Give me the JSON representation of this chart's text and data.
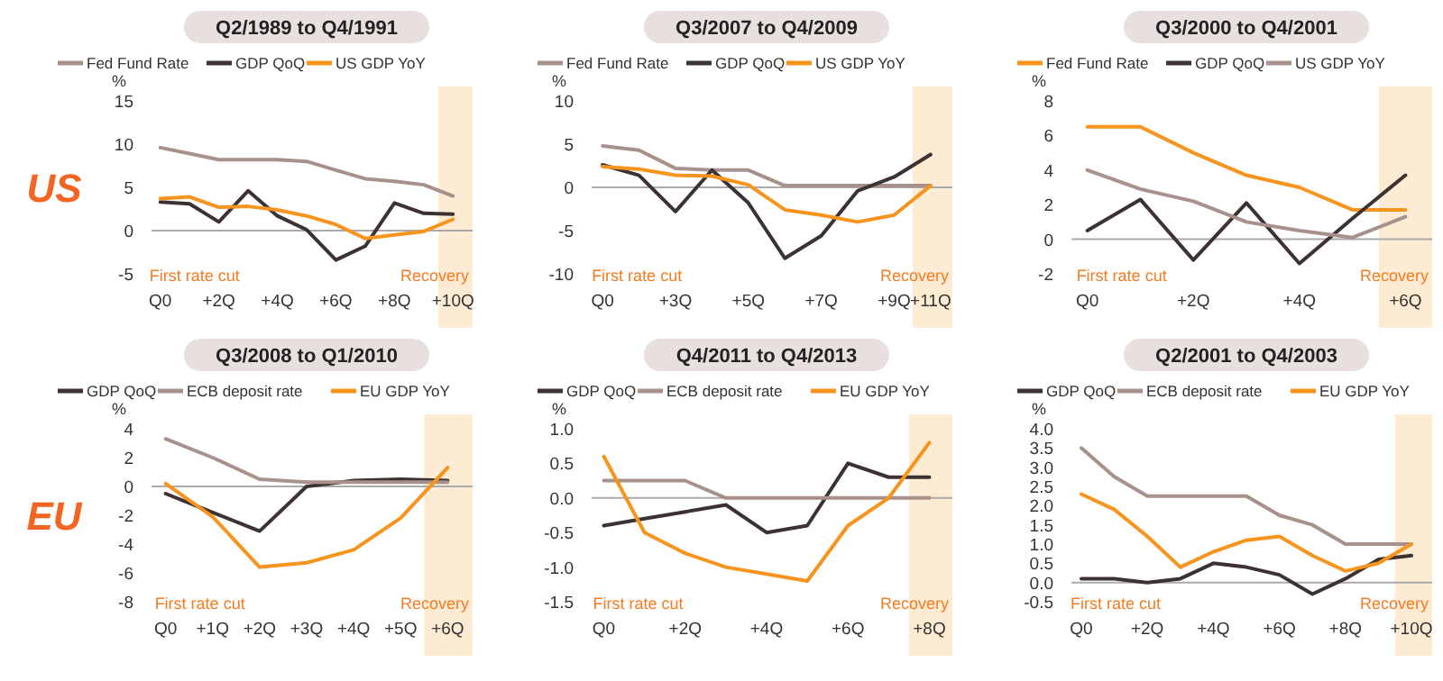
{
  "chart_data": [
    {
      "type": "line",
      "title": "Q2/1989 to Q4/1991",
      "ylabel": "%",
      "legend": "top",
      "categories": [
        "Q0",
        null,
        "+2Q",
        null,
        "+4Q",
        null,
        "+6Q",
        null,
        "+8Q",
        null,
        "+10Q"
      ],
      "ylim": [
        -5,
        15
      ],
      "yticks": [
        -5,
        0,
        5,
        10,
        15
      ],
      "series": [
        {
          "name": "Fed Fund Rate",
          "color": "#a8918c",
          "values": [
            9.6,
            8.9,
            8.2,
            8.2,
            8.2,
            8.0,
            7.0,
            6.0,
            5.7,
            5.3,
            4.0
          ]
        },
        {
          "name": "GDP QoQ",
          "color": "#3d3232",
          "values": [
            3.3,
            3.1,
            1.0,
            4.6,
            1.7,
            0.1,
            -3.4,
            -1.8,
            3.2,
            2.0,
            1.9
          ]
        },
        {
          "name": "US GDP YoY",
          "color": "#f7941d",
          "values": [
            3.7,
            3.9,
            2.7,
            2.8,
            2.4,
            1.7,
            0.7,
            -0.9,
            -0.5,
            -0.1,
            1.3
          ]
        }
      ],
      "bands": [
        {
          "axis": "x",
          "from": "+10Q",
          "to": "+10Q",
          "label": "Recovery",
          "color": "#fdebd3"
        }
      ],
      "annotations": [
        "US",
        "First rate cut"
      ]
    },
    {
      "type": "line",
      "title": "Q3/2007 to Q4/2009",
      "ylabel": "%",
      "legend": "top",
      "categories": [
        "Q0",
        null,
        "+3Q",
        null,
        "+5Q",
        null,
        "+7Q",
        null,
        "+9Q",
        "+11Q"
      ],
      "ylim": [
        -10,
        10
      ],
      "yticks": [
        -10,
        -5,
        0,
        5,
        10
      ],
      "series": [
        {
          "name": "Fed Fund Rate",
          "color": "#a8918c",
          "values": [
            4.8,
            4.3,
            2.2,
            2.0,
            2.0,
            0.2,
            0.2,
            0.2,
            0.2,
            0.2
          ]
        },
        {
          "name": "GDP QoQ",
          "color": "#3d3232",
          "values": [
            2.6,
            1.4,
            -2.8,
            2.0,
            -1.8,
            -8.2,
            -5.6,
            -0.4,
            1.2,
            3.8
          ]
        },
        {
          "name": "US GDP YoY",
          "color": "#f7941d",
          "values": [
            2.4,
            2.1,
            1.4,
            1.3,
            0.3,
            -2.6,
            -3.2,
            -4.0,
            -3.2,
            0.2
          ]
        }
      ],
      "bands": [
        {
          "axis": "x",
          "from": "+11Q",
          "to": "+11Q",
          "label": "Recovery",
          "color": "#fdebd3"
        }
      ],
      "annotations": [
        "First rate cut"
      ]
    },
    {
      "type": "line",
      "title": "Q3/2000 to Q4/2001",
      "ylabel": "%",
      "legend": "top",
      "categories": [
        "Q0",
        null,
        "+2Q",
        null,
        "+4Q",
        null,
        "+6Q"
      ],
      "ylim": [
        -2,
        8
      ],
      "yticks": [
        -2,
        0,
        2,
        4,
        6,
        8
      ],
      "series": [
        {
          "name": "Fed Fund Rate",
          "color": "#f7941d",
          "values": [
            6.5,
            6.5,
            5.0,
            3.7,
            3.0,
            1.7,
            1.7
          ]
        },
        {
          "name": "GDP QoQ",
          "color": "#3d3232",
          "values": [
            0.5,
            2.3,
            -1.2,
            2.1,
            -1.4,
            1.2,
            3.7
          ]
        },
        {
          "name": "US GDP YoY",
          "color": "#a8918c",
          "values": [
            4.0,
            2.9,
            2.2,
            1.0,
            0.5,
            0.1,
            1.3
          ]
        }
      ],
      "bands": [
        {
          "axis": "x",
          "from": "+6Q",
          "to": "+6Q",
          "label": "Recovery",
          "color": "#fdebd3"
        }
      ],
      "annotations": [
        "First rate cut"
      ]
    },
    {
      "type": "line",
      "title": "Q3/2008 to Q1/2010",
      "ylabel": "%",
      "legend": "top",
      "categories": [
        "Q0",
        "+1Q",
        "+2Q",
        "+3Q",
        "+4Q",
        "+5Q",
        "+6Q"
      ],
      "ylim": [
        -8,
        4
      ],
      "yticks": [
        -8,
        -6,
        -4,
        -2,
        0,
        2,
        4
      ],
      "series": [
        {
          "name": "GDP QoQ",
          "color": "#3d3232",
          "values": [
            -0.5,
            -1.8,
            -3.1,
            0.0,
            0.4,
            0.5,
            0.4
          ]
        },
        {
          "name": "ECB deposit rate",
          "color": "#a8918c",
          "values": [
            3.3,
            2.0,
            0.5,
            0.3,
            0.3,
            0.3,
            0.3
          ]
        },
        {
          "name": "EU GDP YoY",
          "color": "#f7941d",
          "values": [
            0.2,
            -2.1,
            -5.6,
            -5.3,
            -4.4,
            -2.2,
            1.3
          ]
        }
      ],
      "bands": [
        {
          "axis": "x",
          "from": "+6Q",
          "to": "+6Q",
          "label": "Recovery",
          "color": "#fdebd3"
        }
      ],
      "annotations": [
        "EU",
        "First rate cut"
      ]
    },
    {
      "type": "line",
      "title": "Q4/2011 to Q4/2013",
      "ylabel": "%",
      "legend": "top",
      "categories": [
        "Q0",
        null,
        "+2Q",
        null,
        "+4Q",
        null,
        "+6Q",
        null,
        "+8Q"
      ],
      "ylim": [
        -1.5,
        1.0
      ],
      "yticks": [
        {
          "value": -1.5,
          "label": "-1.5"
        },
        {
          "value": -1.0,
          "label": "-1.0"
        },
        {
          "value": -0.5,
          "label": "-0.5"
        },
        {
          "value": 0,
          "label": "0.0"
        },
        {
          "value": 0.5,
          "label": "0.5"
        },
        {
          "value": 1.0,
          "label": "1.0"
        }
      ],
      "series": [
        {
          "name": "GDP QoQ",
          "color": "#3d3232",
          "values": [
            -0.4,
            -0.3,
            -0.2,
            -0.1,
            -0.5,
            -0.4,
            0.5,
            0.3,
            0.3
          ]
        },
        {
          "name": "ECB deposit rate",
          "color": "#a8918c",
          "values": [
            0.25,
            0.25,
            0.25,
            0,
            0,
            0,
            0,
            0,
            0
          ]
        },
        {
          "name": "EU GDP YoY",
          "color": "#f7941d",
          "values": [
            0.6,
            -0.5,
            -0.8,
            -1.0,
            -1.1,
            -1.2,
            -0.4,
            0.0,
            0.8
          ]
        }
      ],
      "bands": [
        {
          "axis": "x",
          "from": "+8Q",
          "to": "+8Q",
          "label": "Recovery",
          "color": "#fdebd3"
        }
      ],
      "annotations": [
        "First rate cut"
      ]
    },
    {
      "type": "line",
      "title": "Q2/2001 to Q4/2003",
      "ylabel": "%",
      "legend": "top",
      "categories": [
        "Q0",
        null,
        "+2Q",
        null,
        "+4Q",
        null,
        "+6Q",
        null,
        "+8Q",
        null,
        "+10Q"
      ],
      "ylim": [
        -0.5,
        4.0
      ],
      "yticks": [
        {
          "value": -0.5,
          "label": "-0.5"
        },
        {
          "value": 0,
          "label": "0.0"
        },
        {
          "value": 0.5,
          "label": "0.5"
        },
        {
          "value": 1.0,
          "label": "1.0"
        },
        {
          "value": 1.5,
          "label": "1.5"
        },
        {
          "value": 2.0,
          "label": "2.0"
        },
        {
          "value": 2.5,
          "label": "2.5"
        },
        {
          "value": 3.0,
          "label": "3.0"
        },
        {
          "value": 3.5,
          "label": "3.5"
        },
        {
          "value": 4.0,
          "label": "4.0"
        }
      ],
      "series": [
        {
          "name": "GDP QoQ",
          "color": "#3d3232",
          "values": [
            0.1,
            0.1,
            0.0,
            0.1,
            0.5,
            0.4,
            0.2,
            -0.3,
            0.1,
            0.6,
            0.7
          ]
        },
        {
          "name": "ECB deposit rate",
          "color": "#a8918c",
          "values": [
            3.5,
            2.75,
            2.25,
            2.25,
            2.25,
            2.25,
            1.75,
            1.5,
            1.0,
            1.0,
            1.0
          ]
        },
        {
          "name": "EU GDP YoY",
          "color": "#f7941d",
          "values": [
            2.3,
            1.9,
            1.2,
            0.4,
            0.8,
            1.1,
            1.2,
            0.7,
            0.3,
            0.5,
            1.0
          ]
        }
      ],
      "bands": [
        {
          "axis": "x",
          "from": "+10Q",
          "to": "+10Q",
          "label": "Recovery",
          "color": "#fdebd3"
        }
      ],
      "annotations": [
        "First rate cut"
      ]
    }
  ]
}
